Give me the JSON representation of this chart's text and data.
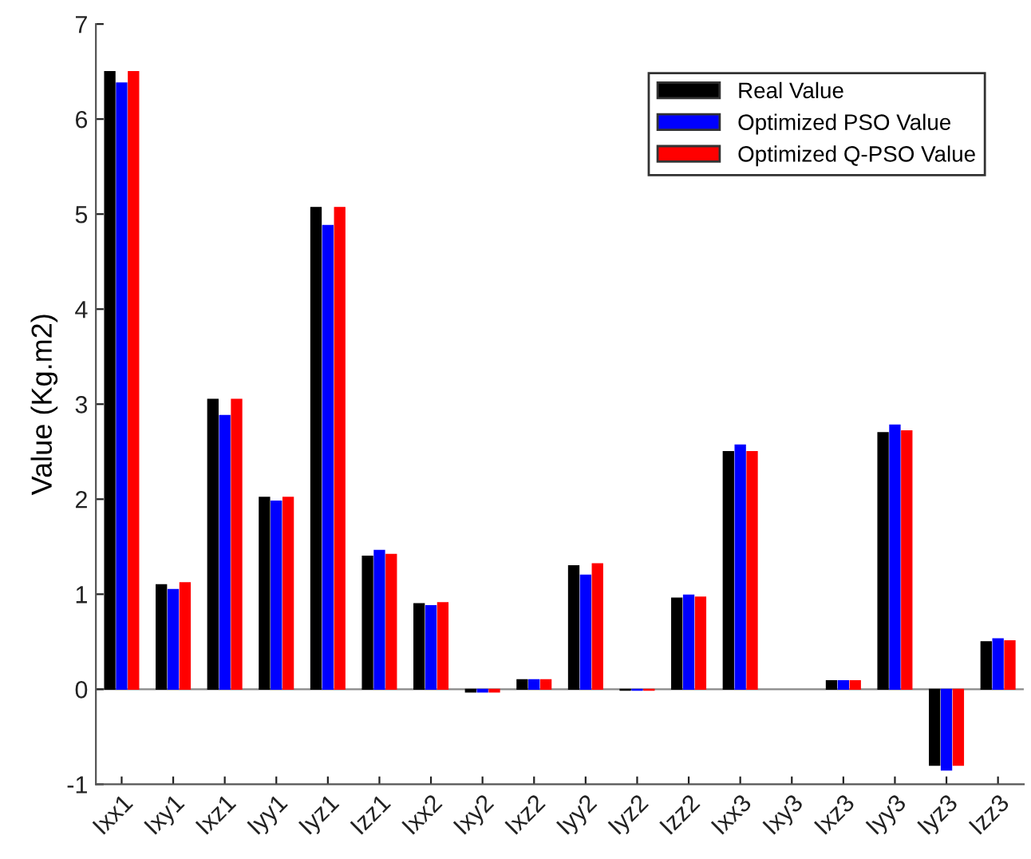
{
  "chart_data": {
    "type": "bar",
    "ylabel": "Value (Kg.m2)",
    "categories": [
      "Ixx1",
      "Ixy1",
      "Ixz1",
      "Iyy1",
      "Iyz1",
      "Izz1",
      "Ixx2",
      "Ixy2",
      "Ixz2",
      "Iyy2",
      "Iyz2",
      "Izz2",
      "Ixx3",
      "Ixy3",
      "Ixz3",
      "Iyy3",
      "Iyz3",
      "Izz3"
    ],
    "series": [
      {
        "name": "Real Value",
        "color": "#000000",
        "values": [
          6.5,
          1.1,
          3.05,
          2.02,
          5.07,
          1.4,
          0.9,
          -0.03,
          0.1,
          1.3,
          -0.01,
          0.96,
          2.5,
          null,
          0.09,
          2.7,
          -0.8,
          0.5
        ]
      },
      {
        "name": "Optimized PSO Value",
        "color": "#0000ff",
        "values": [
          6.38,
          1.05,
          2.88,
          1.98,
          4.88,
          1.46,
          0.88,
          -0.03,
          0.1,
          1.2,
          -0.01,
          0.99,
          2.57,
          null,
          0.09,
          2.78,
          -0.85,
          0.53
        ]
      },
      {
        "name": "Optimized Q-PSO Value",
        "color": "#ff0000",
        "values": [
          6.5,
          1.12,
          3.05,
          2.02,
          5.07,
          1.42,
          0.91,
          -0.03,
          0.1,
          1.32,
          -0.01,
          0.97,
          2.5,
          null,
          0.09,
          2.72,
          -0.8,
          0.51
        ]
      }
    ],
    "ref_lines": [
      {
        "axis": "y",
        "value": 0,
        "color": "#888888"
      }
    ],
    "ylim": [
      -1,
      7
    ],
    "yticks": [
      -1,
      0,
      1,
      2,
      3,
      4,
      5,
      6,
      7
    ],
    "grid": false,
    "legend": "top right"
  }
}
